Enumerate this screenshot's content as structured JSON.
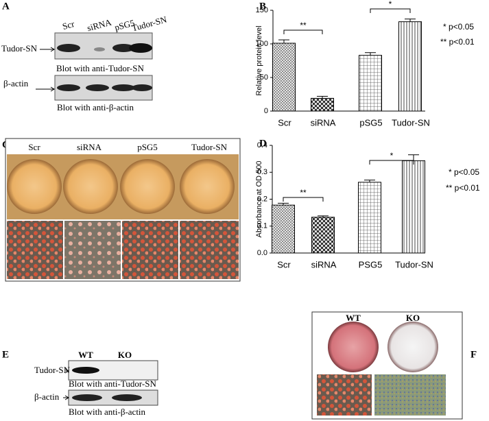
{
  "chart_data": [
    {
      "type": "bar",
      "panel_label": "B",
      "ylabel": "Relative protein level",
      "categories": [
        "Scr",
        "siRNA",
        "pSG5",
        "Tudor-SN"
      ],
      "values": [
        101,
        19,
        83,
        133
      ],
      "errors": [
        5,
        3,
        4,
        4
      ],
      "ylim": [
        0,
        150
      ],
      "yticks": [
        0,
        50,
        100,
        150
      ],
      "annotations": [
        "**",
        "*"
      ],
      "notes": [
        "* p<0.05",
        "** p<0.01"
      ]
    },
    {
      "type": "bar",
      "panel_label": "D",
      "ylabel": "Absorbance at OD 500",
      "categories": [
        "Scr",
        "siRNA",
        "PSG5",
        "Tudor-SN"
      ],
      "values": [
        0.178,
        0.133,
        0.263,
        0.343
      ],
      "errors": [
        0.007,
        0.005,
        0.008,
        0.022
      ],
      "ylim": [
        0,
        0.4
      ],
      "yticks": [
        {
          "value": 0,
          "label": "0.0"
        },
        0.1,
        0.2,
        0.3,
        0.4
      ],
      "annotations": [
        "**",
        "*"
      ],
      "notes": [
        "* p<0.05",
        "** p<0.01"
      ]
    }
  ],
  "panels": {
    "A": {
      "label": "A",
      "lanes": [
        "Scr",
        "siRNA",
        "pSG5",
        "Tudor-SN"
      ],
      "band1": "Tudor-SN",
      "caption1": "Blot with anti-Tudor-SN",
      "band2": "β-actin",
      "caption2": "Blot with anti-β-actin"
    },
    "C": {
      "label": "C",
      "lanes": [
        "Scr",
        "siRNA",
        "pSG5",
        "Tudor-SN"
      ]
    },
    "E": {
      "label": "E",
      "lanes": [
        "WT",
        "KO"
      ],
      "band1": "Tudor-SN",
      "caption1": "Blot with anti-Tudor-SN",
      "band2": "β-actin",
      "caption2": "Blot with anti-β-actin"
    },
    "F": {
      "label": "F",
      "lanes": [
        "WT",
        "KO"
      ]
    }
  }
}
